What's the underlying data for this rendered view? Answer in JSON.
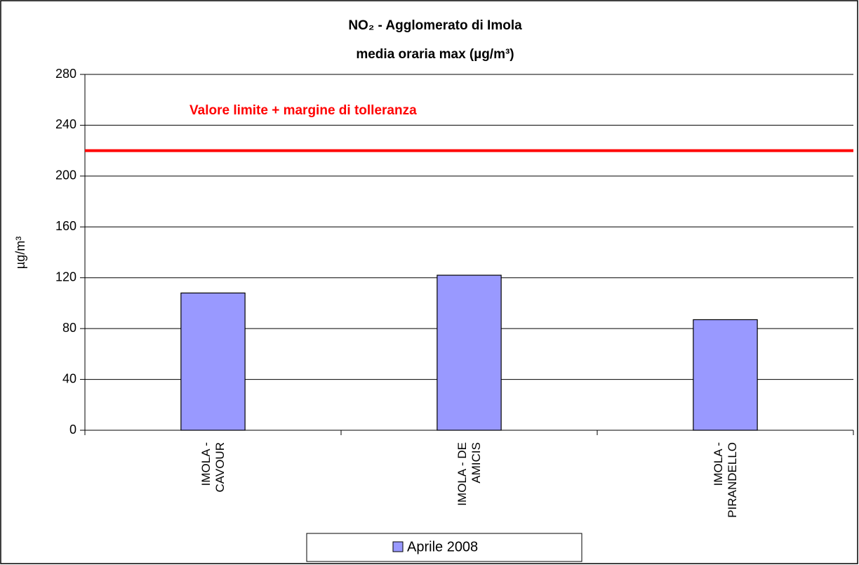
{
  "chart_data": {
    "type": "bar",
    "title": "NO₂ - Agglomerato di Imola",
    "subtitle": "media oraria max  (µg/m³)",
    "y_label": "µg/m³",
    "categories": [
      "IMOLA - CAVOUR",
      "IMOLA - DE AMICIS",
      "IMOLA - PIRANDELLO"
    ],
    "series": [
      {
        "name": "Aprile 2008",
        "color": "#9999ff",
        "values": [
          108,
          122,
          87
        ]
      }
    ],
    "ylim": [
      0,
      280
    ],
    "yticks": [
      0,
      40,
      80,
      120,
      160,
      200,
      240,
      280
    ],
    "grid": true,
    "reference_line": {
      "value": 220,
      "label": "Valore limite + margine di tolleranza",
      "color": "#ff0000"
    },
    "legend": "bottom"
  }
}
